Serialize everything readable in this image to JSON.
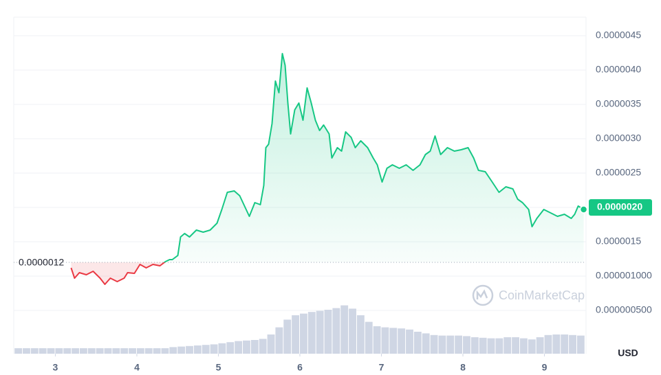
{
  "chart_data": {
    "type": "line",
    "xlim": [
      2.49,
      9.51
    ],
    "xticks": [
      3,
      4,
      5,
      6,
      7,
      8,
      9
    ],
    "ylim": [
      0,
      4.77e-06
    ],
    "yticks": [
      {
        "value": 4.5e-06,
        "label": "0.0000045"
      },
      {
        "value": 4e-06,
        "label": "0.0000040"
      },
      {
        "value": 3.5e-06,
        "label": "0.0000035"
      },
      {
        "value": 3e-06,
        "label": "0.0000030"
      },
      {
        "value": 2.5e-06,
        "label": "0.0000025"
      },
      {
        "value": 2e-06,
        "label": "0.0000020"
      },
      {
        "value": 1.5e-06,
        "label": "0.0000015"
      },
      {
        "value": 1e-06,
        "label": "0.000001000"
      },
      {
        "value": 5e-07,
        "label": "0.000000500"
      }
    ],
    "grid": true,
    "currency": "USD",
    "reference_value": 1.2e-06,
    "reference_label": "0.0000012",
    "last_price": 2e-06,
    "last_price_label": "0.0000020",
    "watermark": "CoinMarketCap",
    "up_color": "#16c784",
    "down_color": "#ea3943",
    "series": [
      {
        "color": "#16c784",
        "x": [
          3.194,
          3.236,
          3.295,
          3.38,
          3.464,
          3.549,
          3.608,
          3.675,
          3.759,
          3.844,
          3.886,
          3.97,
          4.038,
          4.114,
          4.198,
          4.283,
          4.35,
          4.401,
          4.435,
          4.502,
          4.536,
          4.586,
          4.646,
          4.73,
          4.814,
          4.899,
          4.983,
          5.042,
          5.11,
          5.194,
          5.262,
          5.321,
          5.38,
          5.447,
          5.515,
          5.557,
          5.582,
          5.616,
          5.658,
          5.7,
          5.743,
          5.785,
          5.819,
          5.852,
          5.886,
          5.937,
          5.987,
          6.038,
          6.089,
          6.139,
          6.19,
          6.241,
          6.291,
          6.359,
          6.392,
          6.46,
          6.511,
          6.561,
          6.629,
          6.679,
          6.747,
          6.831,
          6.899,
          6.949,
          7.008,
          7.068,
          7.135,
          7.219,
          7.304,
          7.388,
          7.473,
          7.54,
          7.599,
          7.658,
          7.726,
          7.81,
          7.895,
          7.979,
          8.063,
          8.131,
          8.19,
          8.274,
          8.359,
          8.443,
          8.527,
          8.612,
          8.671,
          8.73,
          8.806,
          8.848,
          8.907,
          8.992,
          9.076,
          9.16,
          9.245,
          9.329,
          9.371,
          9.414,
          9.481
        ],
        "values": [
          1.12e-06,
          9.7e-07,
          1.05e-06,
          1.02e-06,
          1.07e-06,
          9.7e-07,
          8.8e-07,
          9.7e-07,
          9.2e-07,
          9.7e-07,
          1.05e-06,
          1.04e-06,
          1.17e-06,
          1.12e-06,
          1.17e-06,
          1.15e-06,
          1.21e-06,
          1.24e-06,
          1.24e-06,
          1.3e-06,
          1.57e-06,
          1.62e-06,
          1.57e-06,
          1.67e-06,
          1.64e-06,
          1.67e-06,
          1.77e-06,
          1.97e-06,
          2.22e-06,
          2.24e-06,
          2.17e-06,
          2.02e-06,
          1.87e-06,
          2.07e-06,
          2.04e-06,
          2.32e-06,
          2.87e-06,
          2.92e-06,
          3.22e-06,
          3.84e-06,
          3.67e-06,
          4.24e-06,
          4.07e-06,
          3.52e-06,
          3.07e-06,
          3.42e-06,
          3.52e-06,
          3.27e-06,
          3.74e-06,
          3.52e-06,
          3.27e-06,
          3.12e-06,
          3.2e-06,
          3.07e-06,
          2.72e-06,
          2.87e-06,
          2.82e-06,
          3.1e-06,
          3.02e-06,
          2.87e-06,
          2.97e-06,
          2.87e-06,
          2.72e-06,
          2.62e-06,
          2.37e-06,
          2.57e-06,
          2.62e-06,
          2.57e-06,
          2.62e-06,
          2.54e-06,
          2.62e-06,
          2.77e-06,
          2.82e-06,
          3.04e-06,
          2.77e-06,
          2.87e-06,
          2.82e-06,
          2.84e-06,
          2.87e-06,
          2.72e-06,
          2.54e-06,
          2.52e-06,
          2.37e-06,
          2.22e-06,
          2.3e-06,
          2.27e-06,
          2.12e-06,
          2.07e-06,
          1.97e-06,
          1.72e-06,
          1.84e-06,
          1.97e-06,
          1.92e-06,
          1.87e-06,
          1.9e-06,
          1.84e-06,
          1.9e-06,
          2.02e-06,
          1.97e-06
        ]
      }
    ],
    "volume": {
      "color": "#cfd6e4",
      "y2lim": [
        0,
        100
      ],
      "x": [
        2.5,
        2.6,
        2.7,
        2.8,
        2.9,
        3.0,
        3.1,
        3.2,
        3.3,
        3.4,
        3.5,
        3.6,
        3.7,
        3.8,
        3.9,
        4.0,
        4.1,
        4.2,
        4.3,
        4.4,
        4.5,
        4.6,
        4.7,
        4.8,
        4.9,
        5.0,
        5.1,
        5.2,
        5.3,
        5.4,
        5.5,
        5.6,
        5.7,
        5.8,
        5.9,
        6.0,
        6.1,
        6.2,
        6.3,
        6.4,
        6.5,
        6.6,
        6.7,
        6.8,
        6.9,
        7.0,
        7.1,
        7.2,
        7.3,
        7.4,
        7.5,
        7.6,
        7.7,
        7.8,
        7.9,
        8.0,
        8.1,
        8.2,
        8.3,
        8.4,
        8.5,
        8.6,
        8.7,
        8.8,
        8.9,
        9.0,
        9.1,
        9.2,
        9.3,
        9.4
      ],
      "values": [
        10,
        10,
        10,
        10,
        10,
        10,
        10,
        10,
        10,
        10,
        10,
        10,
        10,
        10,
        10,
        10,
        10,
        10,
        10,
        12,
        13,
        14,
        15,
        16,
        17,
        19,
        21,
        23,
        24,
        25,
        27,
        35,
        48,
        62,
        70,
        73,
        76,
        78,
        80,
        83,
        88,
        82,
        70,
        58,
        50,
        48,
        47,
        46,
        44,
        40,
        37,
        34,
        33,
        33,
        33,
        32,
        30,
        29,
        28,
        28,
        30,
        30,
        28,
        26,
        30,
        34,
        35,
        35,
        34,
        33
      ]
    }
  }
}
